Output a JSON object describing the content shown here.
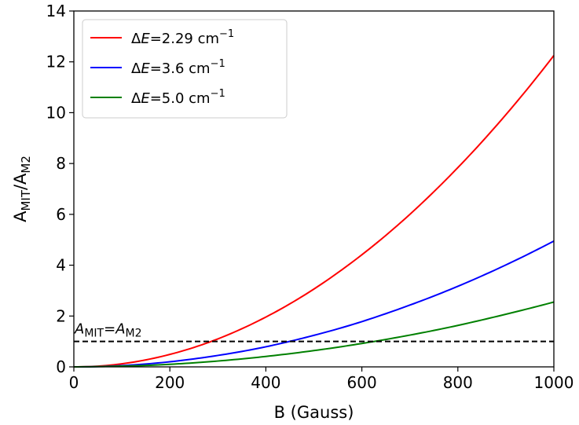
{
  "chart_data": {
    "type": "line",
    "title": "",
    "xlabel": "B (Gauss)",
    "ylabel": {
      "base": "A",
      "sub1": "MIT",
      "sep": "/A",
      "sub2": "M2"
    },
    "xlim": [
      0,
      1000
    ],
    "ylim": [
      0,
      14
    ],
    "xticks": [
      "0",
      "200",
      "400",
      "600",
      "800",
      "1000"
    ],
    "yticks": [
      "0",
      "2",
      "4",
      "6",
      "8",
      "10",
      "12",
      "14"
    ],
    "grid": false,
    "legend_position": "top-left",
    "x": [
      0,
      100,
      200,
      300,
      400,
      500,
      600,
      700,
      800,
      900,
      1000
    ],
    "series": [
      {
        "label": {
          "delta": "Δ",
          "var": "E",
          "value": "=2.29 cm",
          "sup": "−1"
        },
        "color": "#ff0000",
        "values": [
          0,
          0.12,
          0.49,
          1.1,
          1.96,
          3.06,
          4.41,
          6.0,
          7.84,
          9.92,
          12.25
        ]
      },
      {
        "label": {
          "delta": "Δ",
          "var": "E",
          "value": "=3.6 cm",
          "sup": "−1"
        },
        "color": "#0000ff",
        "values": [
          0,
          0.05,
          0.2,
          0.45,
          0.79,
          1.24,
          1.78,
          2.43,
          3.17,
          4.01,
          4.95
        ]
      },
      {
        "label": {
          "delta": "Δ",
          "var": "E",
          "value": "=5.0 cm",
          "sup": "−1"
        },
        "color": "#008000",
        "values": [
          0,
          0.03,
          0.1,
          0.23,
          0.41,
          0.64,
          0.92,
          1.25,
          1.63,
          2.07,
          2.55
        ]
      }
    ],
    "reference_line": {
      "y": 1,
      "style": "dashed",
      "color": "#000000",
      "label": {
        "a1": "A",
        "s1": "MIT",
        "eq": "=",
        "a2": "A",
        "s2": "M2"
      }
    }
  }
}
